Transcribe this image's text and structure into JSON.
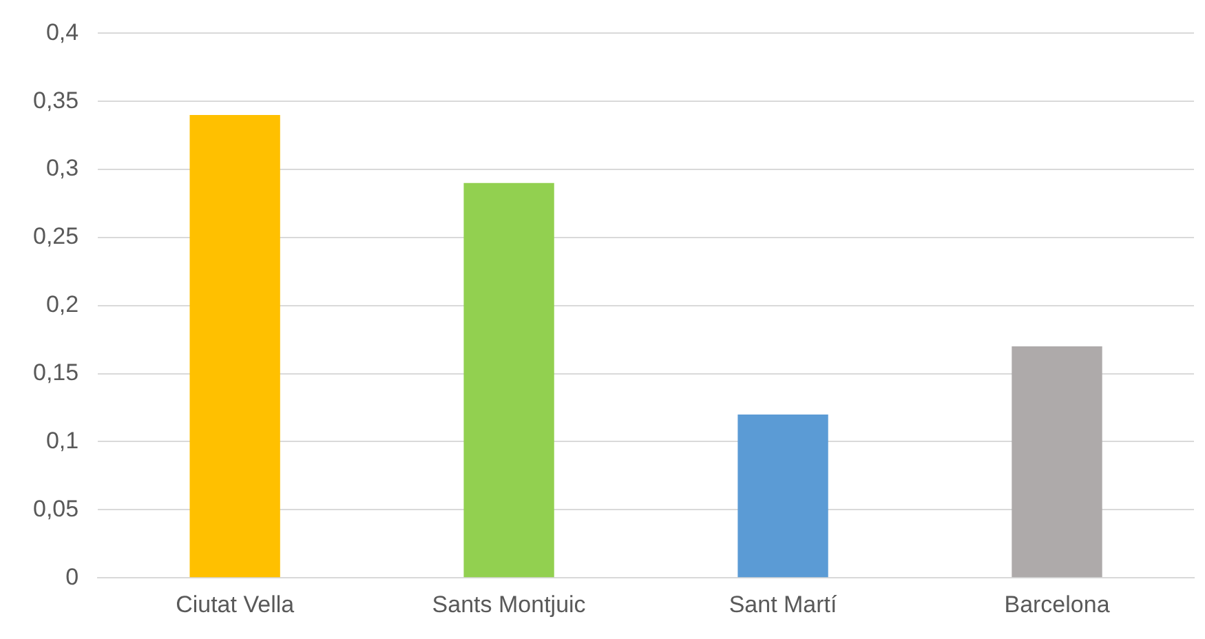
{
  "chart_data": {
    "type": "bar",
    "categories": [
      "Ciutat Vella",
      "Sants Montjuic",
      "Sant Martí",
      "Barcelona"
    ],
    "values": [
      0.34,
      0.29,
      0.12,
      0.17
    ],
    "colors": [
      "#ffc000",
      "#92d050",
      "#5b9bd5",
      "#aeaaaa"
    ],
    "ylim": [
      0,
      0.4
    ],
    "yticks": [
      0,
      {
        "value": 0.05,
        "label": "0,05"
      },
      {
        "value": 0.1,
        "label": "0,1"
      },
      {
        "value": 0.15,
        "label": "0,15"
      },
      {
        "value": 0.2,
        "label": "0,2"
      },
      {
        "value": 0.25,
        "label": "0,25"
      },
      {
        "value": 0.3,
        "label": "0,3"
      },
      {
        "value": 0.35,
        "label": "0,35"
      },
      {
        "value": 0.4,
        "label": "0,4"
      }
    ],
    "grid": "y",
    "legend": false
  }
}
